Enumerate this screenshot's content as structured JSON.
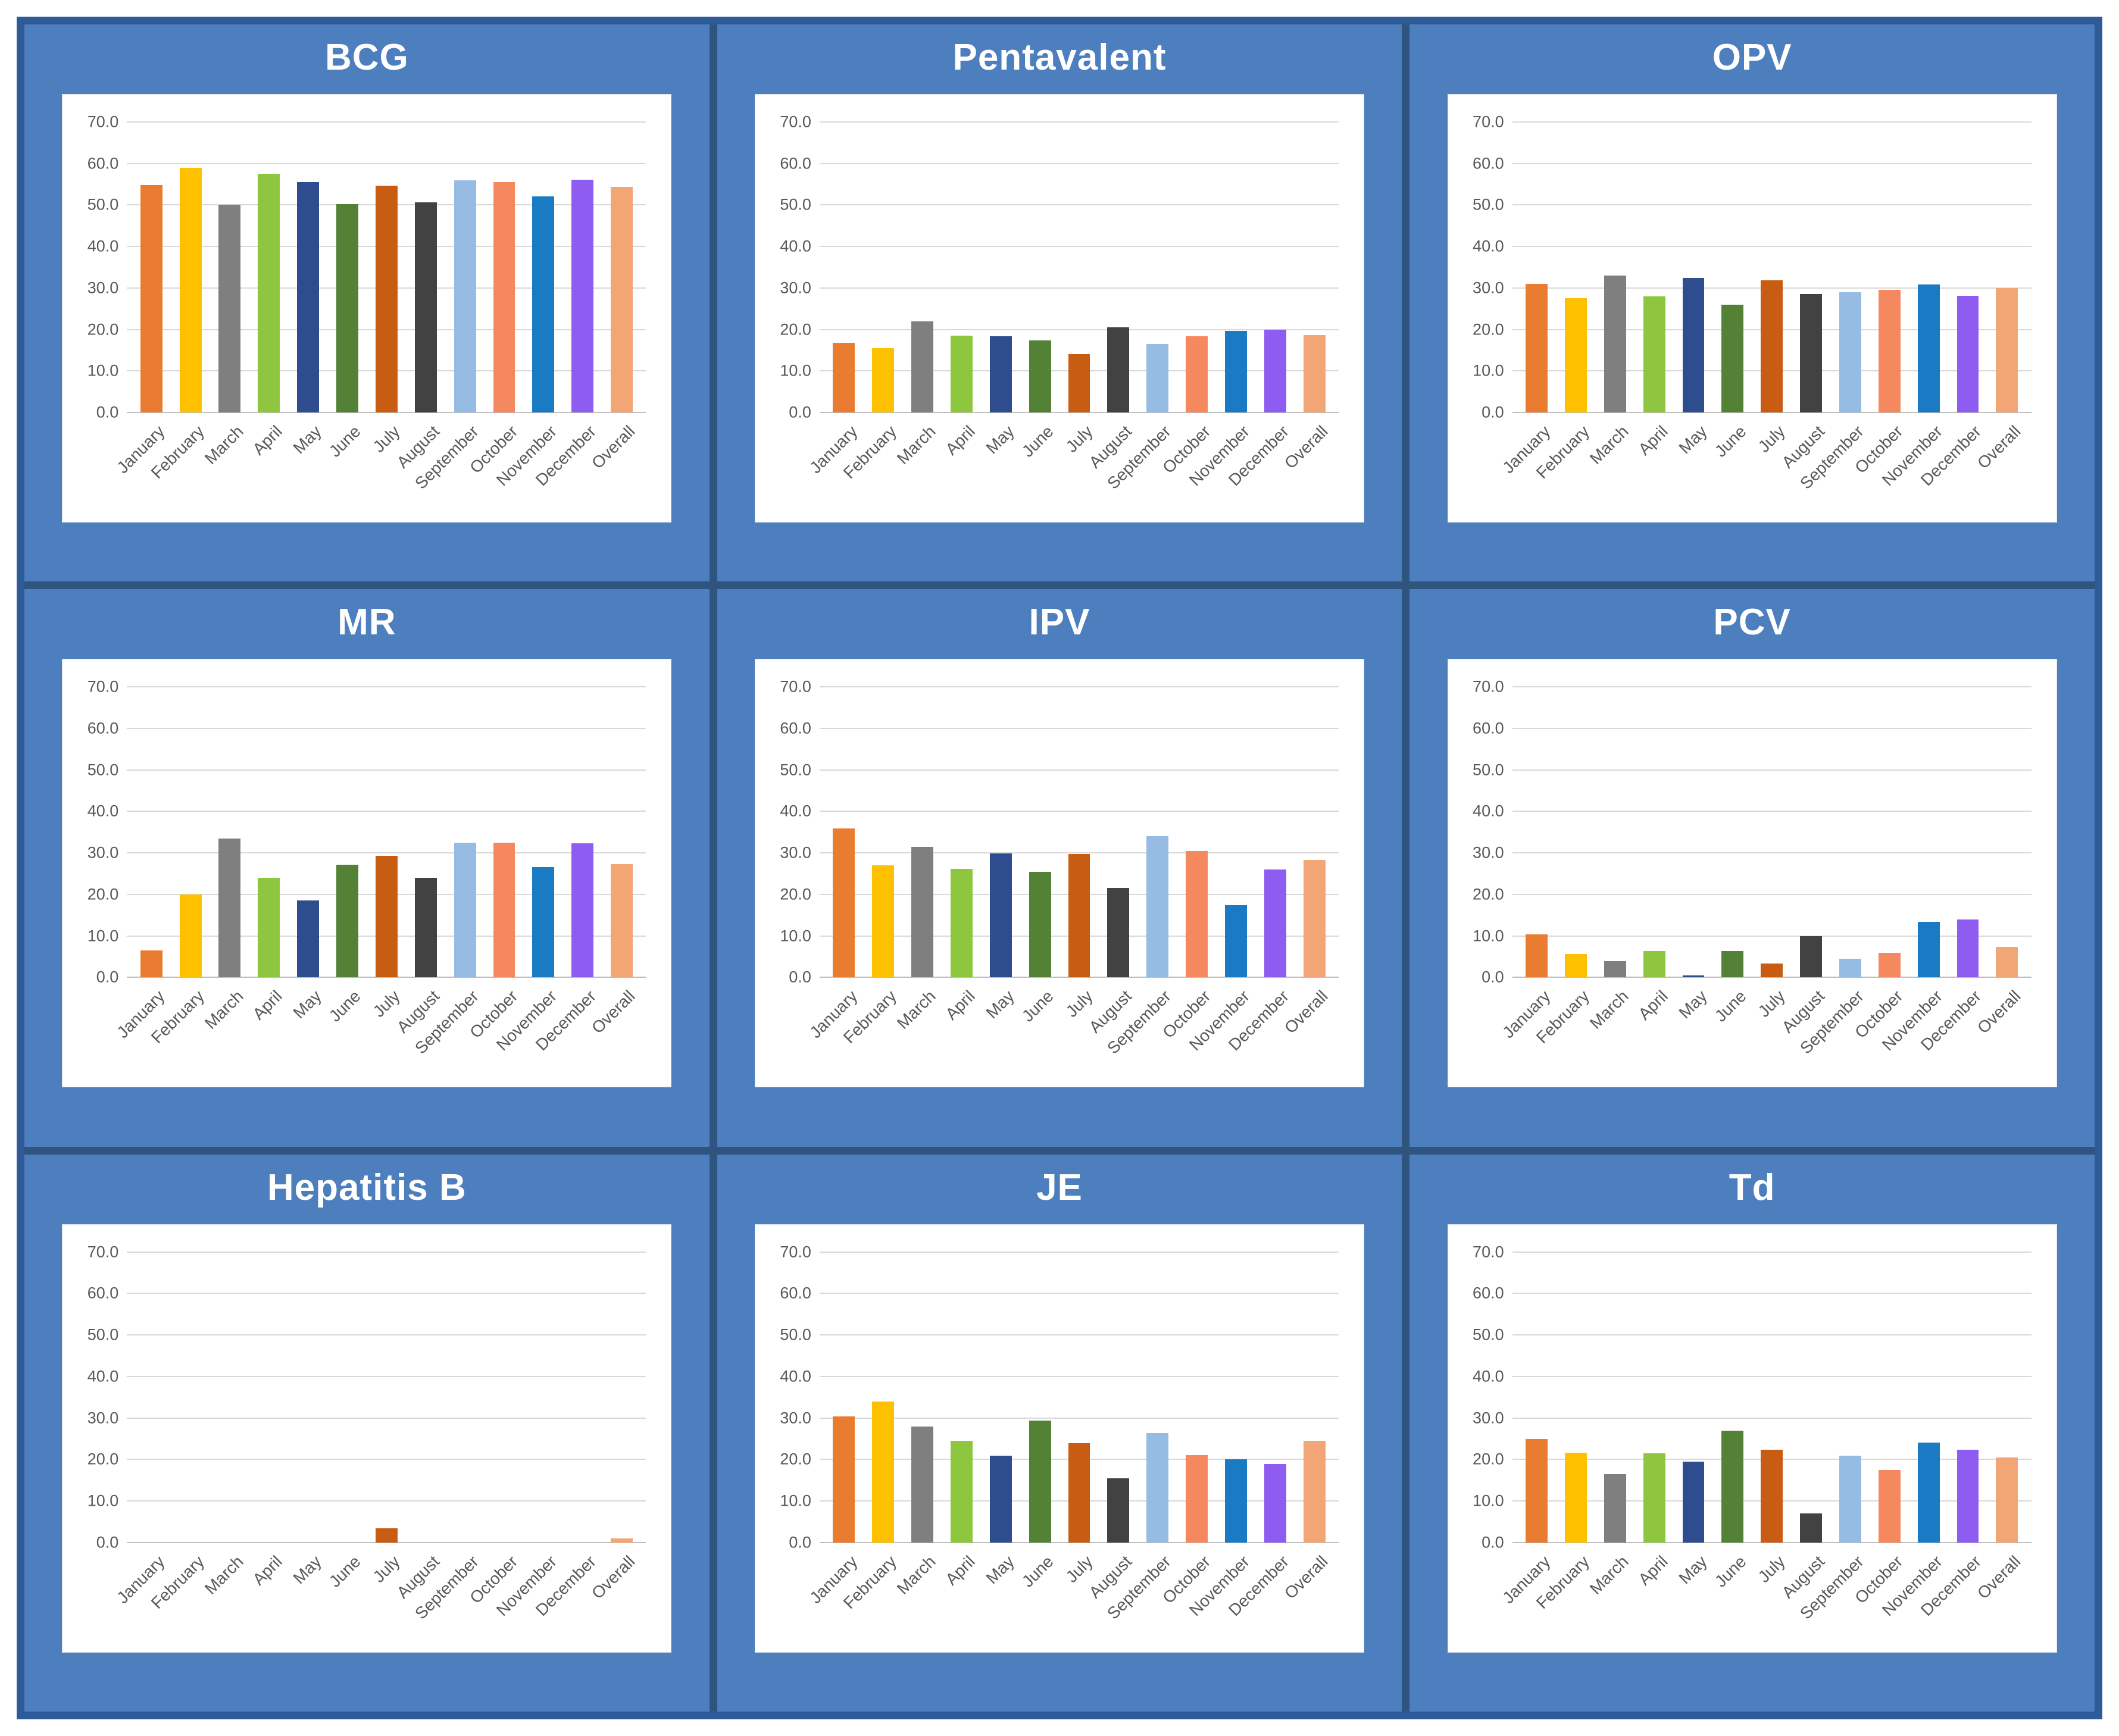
{
  "theme": {
    "page_background": "#FFFFFF",
    "outer_border": "#2E5B97",
    "grid_border": "#2F547E",
    "cell_fill": "#4D7EBE",
    "panel_title_color": "#FFFFFF",
    "chart_background": "#FFFFFF",
    "gridline_color": "#D9D9D9",
    "axis_line_color": "#BFBFBF",
    "tick_label_color": "#595959",
    "bar_colors": [
      "#E97C30",
      "#FFC000",
      "#7F7F7F",
      "#8EC63F",
      "#2E4D8E",
      "#538135",
      "#C85C12",
      "#424242",
      "#97BCE3",
      "#F5885F",
      "#1B7AC4",
      "#8E5CF0",
      "#F2A575"
    ]
  },
  "y_axis": {
    "min": 0,
    "max": 70,
    "step": 10,
    "tick_labels": [
      "70.0",
      "60.0",
      "50.0",
      "40.0",
      "30.0",
      "20.0",
      "10.0",
      "0.0"
    ]
  },
  "chart_data": [
    {
      "type": "bar",
      "title": "BCG",
      "categories": [
        "January",
        "February",
        "March",
        "April",
        "May",
        "June",
        "July",
        "August",
        "September",
        "October",
        "November",
        "December",
        "Overall"
      ],
      "values": [
        54.8,
        58.9,
        50.0,
        57.5,
        55.5,
        50.2,
        54.6,
        50.7,
        55.9,
        55.5,
        52.1,
        56.1,
        54.4
      ],
      "xlabel": "",
      "ylabel": "",
      "ylim": [
        0,
        70
      ],
      "grid": "horizontal every 10",
      "legend": "none"
    },
    {
      "type": "bar",
      "title": "Pentavalent",
      "categories": [
        "January",
        "February",
        "March",
        "April",
        "May",
        "June",
        "July",
        "August",
        "September",
        "October",
        "November",
        "December",
        "Overall"
      ],
      "values": [
        16.8,
        15.5,
        22.0,
        18.5,
        18.4,
        17.4,
        14.0,
        20.5,
        16.5,
        18.4,
        19.6,
        20.0,
        18.6
      ],
      "xlabel": "",
      "ylabel": "",
      "ylim": [
        0,
        70
      ],
      "grid": "horizontal every 10",
      "legend": "none"
    },
    {
      "type": "bar",
      "title": "OPV",
      "categories": [
        "January",
        "February",
        "March",
        "April",
        "May",
        "June",
        "July",
        "August",
        "September",
        "October",
        "November",
        "December",
        "Overall"
      ],
      "values": [
        31.0,
        27.5,
        33.0,
        28.0,
        32.4,
        26.0,
        31.9,
        28.6,
        29.0,
        29.6,
        30.9,
        28.1,
        30.0
      ],
      "xlabel": "",
      "ylabel": "",
      "ylim": [
        0,
        70
      ],
      "grid": "horizontal every 10",
      "legend": "none"
    },
    {
      "type": "bar",
      "title": "MR",
      "categories": [
        "January",
        "February",
        "March",
        "April",
        "May",
        "June",
        "July",
        "August",
        "September",
        "October",
        "November",
        "December",
        "Overall"
      ],
      "values": [
        6.5,
        20.0,
        33.4,
        24.0,
        18.5,
        27.1,
        29.3,
        24.0,
        32.5,
        32.4,
        26.6,
        32.3,
        27.3
      ],
      "xlabel": "",
      "ylabel": "",
      "ylim": [
        0,
        70
      ],
      "grid": "horizontal every 10",
      "legend": "none"
    },
    {
      "type": "bar",
      "title": "IPV",
      "categories": [
        "January",
        "February",
        "March",
        "April",
        "May",
        "June",
        "July",
        "August",
        "September",
        "October",
        "November",
        "December",
        "Overall"
      ],
      "values": [
        35.9,
        27.0,
        31.4,
        26.1,
        29.9,
        25.4,
        29.8,
        21.5,
        34.0,
        30.4,
        17.4,
        26.0,
        28.3
      ],
      "xlabel": "",
      "ylabel": "",
      "ylim": [
        0,
        70
      ],
      "grid": "horizontal every 10",
      "legend": "none"
    },
    {
      "type": "bar",
      "title": "PCV",
      "categories": [
        "January",
        "February",
        "March",
        "April",
        "May",
        "June",
        "July",
        "August",
        "September",
        "October",
        "November",
        "December",
        "Overall"
      ],
      "values": [
        10.4,
        5.6,
        3.9,
        6.4,
        0.5,
        6.4,
        3.4,
        9.9,
        4.5,
        6.0,
        13.4,
        14.0,
        7.3
      ],
      "xlabel": "",
      "ylabel": "",
      "ylim": [
        0,
        70
      ],
      "grid": "horizontal every 10",
      "legend": "none"
    },
    {
      "type": "bar",
      "title": "Hepatitis B",
      "categories": [
        "January",
        "February",
        "March",
        "April",
        "May",
        "June",
        "July",
        "August",
        "September",
        "October",
        "November",
        "December",
        "Overall"
      ],
      "values": [
        0,
        0,
        0,
        0,
        0,
        0,
        3.4,
        0,
        0,
        0,
        0,
        0,
        1.0
      ],
      "xlabel": "",
      "ylabel": "",
      "ylim": [
        0,
        70
      ],
      "grid": "horizontal every 10",
      "legend": "none"
    },
    {
      "type": "bar",
      "title": "JE",
      "categories": [
        "January",
        "February",
        "March",
        "April",
        "May",
        "June",
        "July",
        "August",
        "September",
        "October",
        "November",
        "December",
        "Overall"
      ],
      "values": [
        30.4,
        33.9,
        27.9,
        24.5,
        20.9,
        29.4,
        23.9,
        15.5,
        26.4,
        21.0,
        20.0,
        18.9,
        24.5
      ],
      "xlabel": "",
      "ylabel": "",
      "ylim": [
        0,
        70
      ],
      "grid": "horizontal every 10",
      "legend": "none"
    },
    {
      "type": "bar",
      "title": "Td",
      "categories": [
        "January",
        "February",
        "March",
        "April",
        "May",
        "June",
        "July",
        "August",
        "September",
        "October",
        "November",
        "December",
        "Overall"
      ],
      "values": [
        24.9,
        21.6,
        16.4,
        21.4,
        19.5,
        26.9,
        22.4,
        7.0,
        20.9,
        17.5,
        24.0,
        22.4,
        20.4
      ],
      "xlabel": "",
      "ylabel": "",
      "ylim": [
        0,
        70
      ],
      "grid": "horizontal every 10",
      "legend": "none"
    }
  ]
}
